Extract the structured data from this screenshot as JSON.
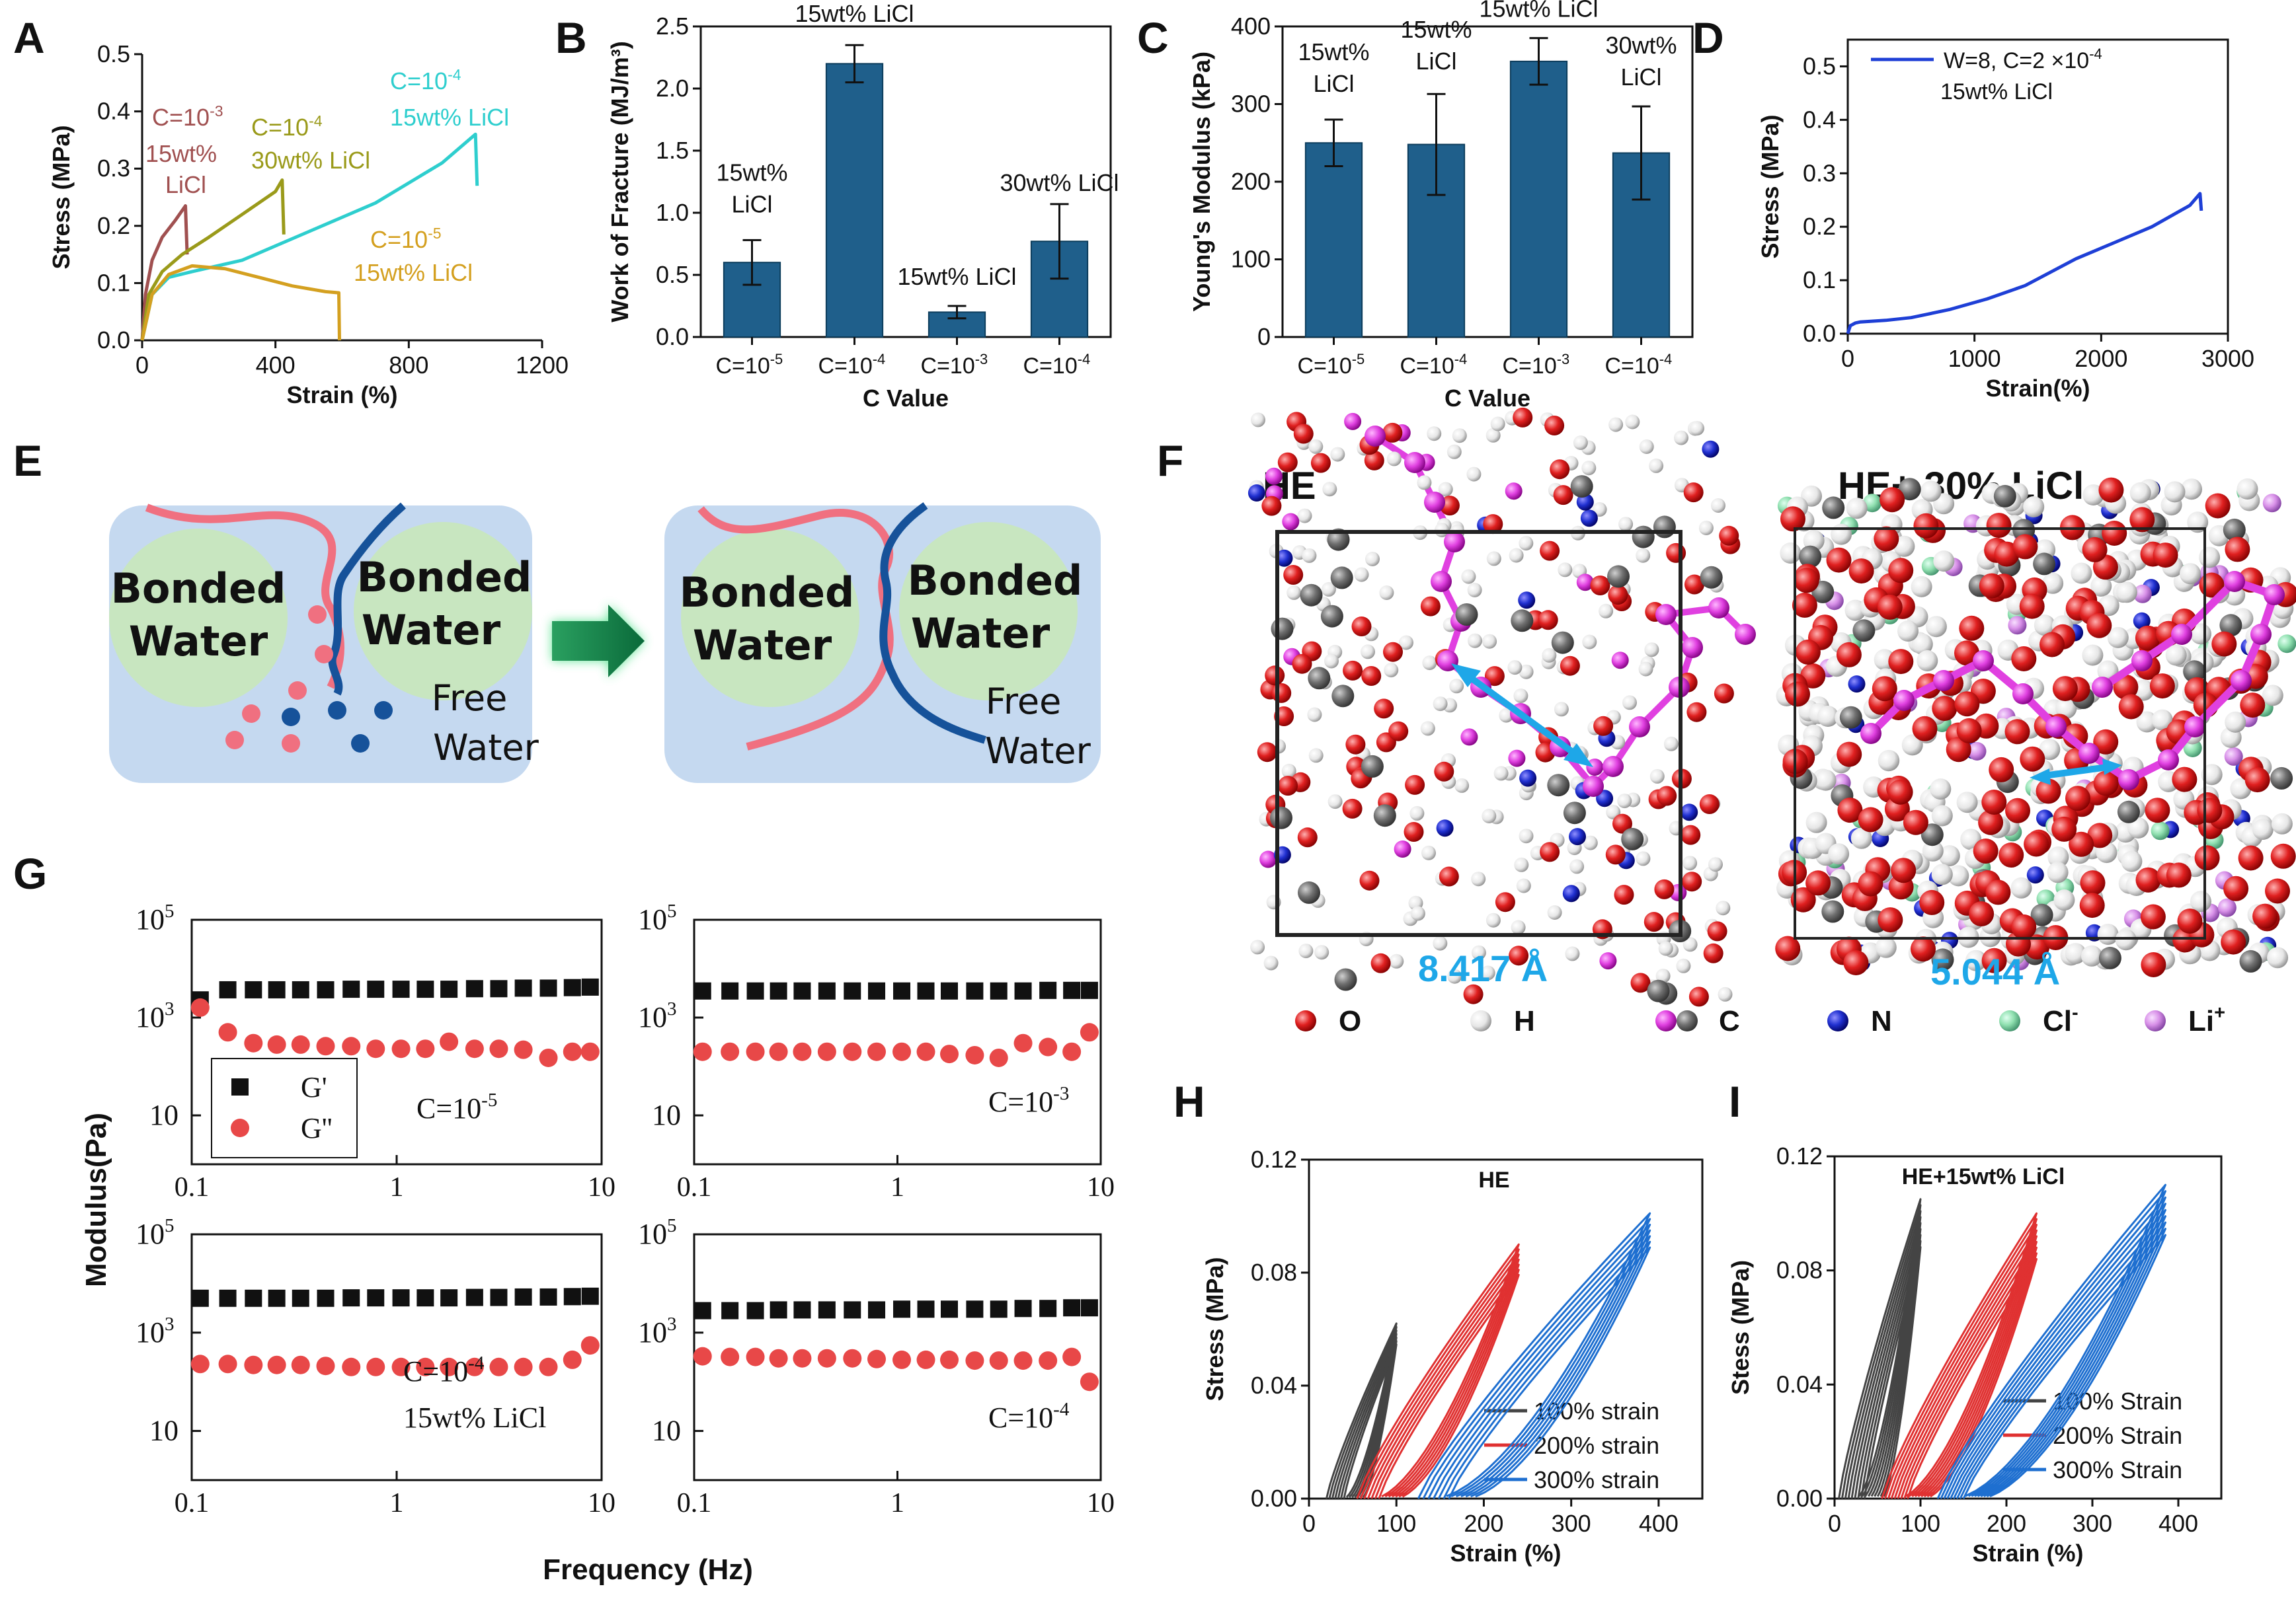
{
  "panel_letters": {
    "A": "A",
    "B": "B",
    "C": "C",
    "D": "D",
    "E": "E",
    "F": "F",
    "G": "G",
    "H": "H",
    "I": "I"
  },
  "colors": {
    "bar": "#1f5f8b",
    "bar_edge": "#0d3d5c",
    "red": "#e03131",
    "black": "#111111",
    "blue": "#1e6fd0",
    "teal": "#2ecece",
    "olive": "#9a9a1a",
    "maroon": "#a05050",
    "gold": "#d4a020",
    "cyan_text": "#1ea7e8",
    "green_bubble": "#c8e6c0",
    "schematic_bg": "#c5d9f0",
    "strand_red": "#f07080",
    "strand_blue": "#16529a"
  },
  "chart_data": [
    {
      "panel": "A",
      "type": "line",
      "xlabel": "Strain (%)",
      "ylabel": "Stress (MPa)",
      "xlim": [
        0,
        1200
      ],
      "ylim": [
        0,
        0.5
      ],
      "xticks": [
        "0",
        "400",
        "800",
        "1200"
      ],
      "yticks": [
        "0.0",
        "0.1",
        "0.2",
        "0.3",
        "0.4",
        "0.5"
      ],
      "series": [
        {
          "name": "C=10^-3 15wt% LiCl",
          "label_lines": [
            "C=10",
            "-3",
            "15wt%",
            "LiCl"
          ],
          "color": "#a05050",
          "x": [
            0,
            10,
            30,
            60,
            100,
            130,
            135
          ],
          "y": [
            0,
            0.08,
            0.14,
            0.18,
            0.21,
            0.235,
            0.15
          ]
        },
        {
          "name": "C=10^-4 30wt% LiCl",
          "label_lines": [
            "C=10",
            "-4",
            "30wt% LiCl"
          ],
          "color": "#9a9a1a",
          "x": [
            0,
            20,
            60,
            120,
            200,
            300,
            400,
            420,
            425
          ],
          "y": [
            0,
            0.08,
            0.12,
            0.15,
            0.18,
            0.22,
            0.26,
            0.28,
            0.185
          ]
        },
        {
          "name": "C=10^-4 15wt% LiCl",
          "label_lines": [
            "C=10",
            "-4",
            "15wt% LiCl"
          ],
          "color": "#2ecece",
          "x": [
            0,
            30,
            80,
            150,
            300,
            500,
            700,
            900,
            1000,
            1005
          ],
          "y": [
            0,
            0.08,
            0.11,
            0.12,
            0.14,
            0.19,
            0.24,
            0.31,
            0.36,
            0.27
          ]
        },
        {
          "name": "C=10^-5 15wt% LiCl",
          "label_lines": [
            "C=10",
            "-5",
            "15wt% LiCl"
          ],
          "color": "#d4a020",
          "x": [
            0,
            30,
            80,
            150,
            250,
            350,
            450,
            550,
            590,
            592
          ],
          "y": [
            0,
            0.08,
            0.115,
            0.13,
            0.125,
            0.11,
            0.095,
            0.085,
            0.083,
            0
          ]
        }
      ]
    },
    {
      "panel": "B",
      "type": "bar",
      "xlabel": "C Value",
      "ylabel": "Work of Fracture (MJ/m³)",
      "ylim": [
        0,
        2.5
      ],
      "yticks": [
        "0.0",
        "0.5",
        "1.0",
        "1.5",
        "2.0",
        "2.5"
      ],
      "categories": [
        "C=10^-5",
        "C=10^-4",
        "C=10^-3",
        "C=10^-4"
      ],
      "category_tex": [
        [
          "C=10",
          "-5"
        ],
        [
          "C=10",
          "-4"
        ],
        [
          "C=10",
          "-3"
        ],
        [
          "C=10",
          "-4"
        ]
      ],
      "values": [
        0.6,
        2.2,
        0.2,
        0.77
      ],
      "errors": [
        0.18,
        0.15,
        0.05,
        0.3
      ],
      "bar_labels": [
        [
          "15wt%",
          "LiCl"
        ],
        [
          "15wt% LiCl"
        ],
        [
          "15wt% LiCl"
        ],
        [
          "30wt% LiCl"
        ]
      ]
    },
    {
      "panel": "C",
      "type": "bar",
      "xlabel": "C Value",
      "ylabel": "Young's Modulus (kPa)",
      "ylim": [
        0,
        400
      ],
      "yticks": [
        "0",
        "100",
        "200",
        "300",
        "400"
      ],
      "categories": [
        "C=10^-5",
        "C=10^-4",
        "C=10^-3",
        "C=10^-4"
      ],
      "category_tex": [
        [
          "C=10",
          "-5"
        ],
        [
          "C=10",
          "-4"
        ],
        [
          "C=10",
          "-3"
        ],
        [
          "C=10",
          "-4"
        ]
      ],
      "values": [
        250,
        248,
        355,
        237
      ],
      "errors": [
        30,
        65,
        30,
        60
      ],
      "bar_labels": [
        [
          "15wt%",
          "LiCl"
        ],
        [
          "15wt%",
          "LiCl"
        ],
        [
          "15wt% LiCl"
        ],
        [
          "30wt%",
          "LiCl"
        ]
      ]
    },
    {
      "panel": "D",
      "type": "line",
      "xlabel": "Strain(%)",
      "ylabel": "Stress (MPa)",
      "xlim": [
        0,
        3000
      ],
      "ylim": [
        0,
        0.55
      ],
      "xticks": [
        "0",
        "1000",
        "2000",
        "3000"
      ],
      "yticks": [
        "0.0",
        "0.1",
        "0.2",
        "0.3",
        "0.4",
        "0.5"
      ],
      "legend": {
        "line1_pre": "W=8, C=2",
        "line1_mul": "×10",
        "line1_exp": "-4",
        "line2": "15wt% LiCl"
      },
      "series": [
        {
          "name": "W=8, C=2×10^-4 15wt% LiCl",
          "color": "#1e3fd6",
          "x": [
            0,
            20,
            60,
            100,
            300,
            500,
            800,
            1100,
            1400,
            1800,
            2100,
            2400,
            2700,
            2780,
            2790
          ],
          "y": [
            0,
            0.015,
            0.02,
            0.022,
            0.025,
            0.03,
            0.045,
            0.065,
            0.09,
            0.14,
            0.17,
            0.2,
            0.24,
            0.262,
            0.23
          ]
        }
      ]
    },
    {
      "panel": "G",
      "type": "scatter",
      "xlabel": "Frequency (Hz)",
      "ylabel": "Modulus(Pa)",
      "xscale": "log",
      "yscale": "log",
      "xlim": [
        0.1,
        10
      ],
      "ylim": [
        1,
        100000
      ],
      "xticks": [
        "0.1",
        "1",
        "10"
      ],
      "yticks": [
        "10",
        "10",
        "10"
      ],
      "ytick_exps": [
        "5",
        "3",
        ""
      ],
      "legend": {
        "g1": "G'",
        "g2": "G''"
      },
      "subplots": [
        {
          "label": [
            "C=10",
            "-5"
          ],
          "x": [
            0.11,
            0.15,
            0.2,
            0.26,
            0.34,
            0.45,
            0.6,
            0.79,
            1.05,
            1.38,
            1.8,
            2.4,
            3.15,
            4.15,
            5.5,
            7.2,
            8.8
          ],
          "gp": [
            2300,
            3700,
            3700,
            3700,
            3700,
            3700,
            3800,
            3800,
            3800,
            3800,
            3800,
            3900,
            3900,
            4000,
            4000,
            4100,
            4200
          ],
          "gpp": [
            1600,
            500,
            300,
            280,
            280,
            260,
            260,
            230,
            230,
            230,
            320,
            230,
            230,
            220,
            150,
            200,
            200
          ]
        },
        {
          "label": [
            "C=10",
            "-3"
          ],
          "x": [
            0.11,
            0.15,
            0.2,
            0.26,
            0.34,
            0.45,
            0.6,
            0.79,
            1.05,
            1.38,
            1.8,
            2.4,
            3.15,
            4.15,
            5.5,
            7.2,
            8.8
          ],
          "gp": [
            3500,
            3500,
            3500,
            3500,
            3500,
            3500,
            3500,
            3500,
            3500,
            3500,
            3500,
            3500,
            3500,
            3500,
            3600,
            3600,
            3600
          ],
          "gpp": [
            200,
            200,
            200,
            200,
            200,
            200,
            200,
            200,
            200,
            200,
            180,
            170,
            150,
            300,
            250,
            200,
            500
          ]
        },
        {
          "label": [
            "C=10",
            "-4",
            "15wt% LiCl"
          ],
          "x": [
            0.11,
            0.15,
            0.2,
            0.26,
            0.34,
            0.45,
            0.6,
            0.79,
            1.05,
            1.38,
            1.8,
            2.4,
            3.15,
            4.15,
            5.5,
            7.2,
            8.8
          ],
          "gp": [
            5000,
            5000,
            5000,
            5000,
            5000,
            5000,
            5100,
            5100,
            5100,
            5100,
            5100,
            5200,
            5200,
            5300,
            5300,
            5400,
            5500
          ],
          "gpp": [
            230,
            230,
            220,
            220,
            220,
            210,
            200,
            200,
            200,
            200,
            200,
            200,
            200,
            200,
            200,
            280,
            550
          ]
        },
        {
          "label": [
            "C=10",
            "-4"
          ],
          "x": [
            0.11,
            0.15,
            0.2,
            0.26,
            0.34,
            0.45,
            0.6,
            0.79,
            1.05,
            1.38,
            1.8,
            2.4,
            3.15,
            4.15,
            5.5,
            7.2,
            8.8
          ],
          "gp": [
            2800,
            2800,
            2800,
            2900,
            2900,
            2900,
            2900,
            2900,
            3000,
            3000,
            3000,
            3000,
            3000,
            3100,
            3100,
            3200,
            3200
          ],
          "gpp": [
            330,
            320,
            320,
            300,
            300,
            300,
            300,
            290,
            280,
            280,
            280,
            270,
            270,
            270,
            270,
            320,
            100
          ]
        }
      ]
    },
    {
      "panel": "H",
      "type": "line",
      "title": "HE",
      "xlabel": "Strain (%)",
      "ylabel": "Stress (MPa)",
      "xlim": [
        0,
        450
      ],
      "ylim": [
        0,
        0.12
      ],
      "xticks": [
        "0",
        "100",
        "200",
        "300",
        "400"
      ],
      "yticks": [
        "0.00",
        "0.04",
        "0.08",
        "0.12"
      ],
      "series": [
        {
          "name": "100% strain",
          "color": "#444444",
          "start": [
            20,
            40
          ],
          "end": [
            100,
            0.062
          ],
          "cycles": 7
        },
        {
          "name": "200% strain",
          "color": "#e03131",
          "start": [
            55,
            80
          ],
          "end": [
            240,
            0.09
          ],
          "cycles": 7
        },
        {
          "name": "300% strain",
          "color": "#1e6fd0",
          "start": [
            125,
            160
          ],
          "end": [
            390,
            0.101
          ],
          "cycles": 7
        }
      ]
    },
    {
      "panel": "I",
      "type": "line",
      "title": "HE+15wt% LiCl",
      "xlabel": "Strain (%)",
      "ylabel": "Stess (MPa)",
      "xlim": [
        0,
        450
      ],
      "ylim": [
        0,
        0.12
      ],
      "xticks": [
        "0",
        "100",
        "200",
        "300",
        "400"
      ],
      "yticks": [
        "0.00",
        "0.04",
        "0.08",
        "0.12"
      ],
      "series": [
        {
          "name": "100% Strain",
          "color": "#444444",
          "start": [
            5,
            35
          ],
          "end": [
            100,
            0.105
          ],
          "cycles": 9
        },
        {
          "name": "200% Strain",
          "color": "#e03131",
          "start": [
            55,
            85
          ],
          "end": [
            235,
            0.1
          ],
          "cycles": 9
        },
        {
          "name": "300% Strain",
          "color": "#1e6fd0",
          "start": [
            120,
            150
          ],
          "end": [
            385,
            0.11
          ],
          "cycles": 9
        }
      ]
    }
  ],
  "schematic": {
    "bonded": [
      "Bonded",
      "Water"
    ],
    "free": [
      "Free",
      "Water"
    ]
  },
  "md": {
    "title_left": "HE",
    "title_right": "HE+ 30% LiCl",
    "dist_left": "8.417 Å",
    "dist_right": "5.044 Å",
    "legend": [
      {
        "sym": "O",
        "sup": "",
        "color": "#e02020"
      },
      {
        "sym": "H",
        "sup": "",
        "color": "#f0f0f0"
      },
      {
        "sym": "C",
        "sup": "",
        "color": "#e040e0"
      },
      {
        "sym": "N",
        "sup": "",
        "color": "#2030d0"
      },
      {
        "sym": "Cl",
        "sup": "-",
        "color": "#90e0b0"
      },
      {
        "sym": "Li",
        "sup": "+",
        "color": "#d890e8"
      }
    ]
  }
}
